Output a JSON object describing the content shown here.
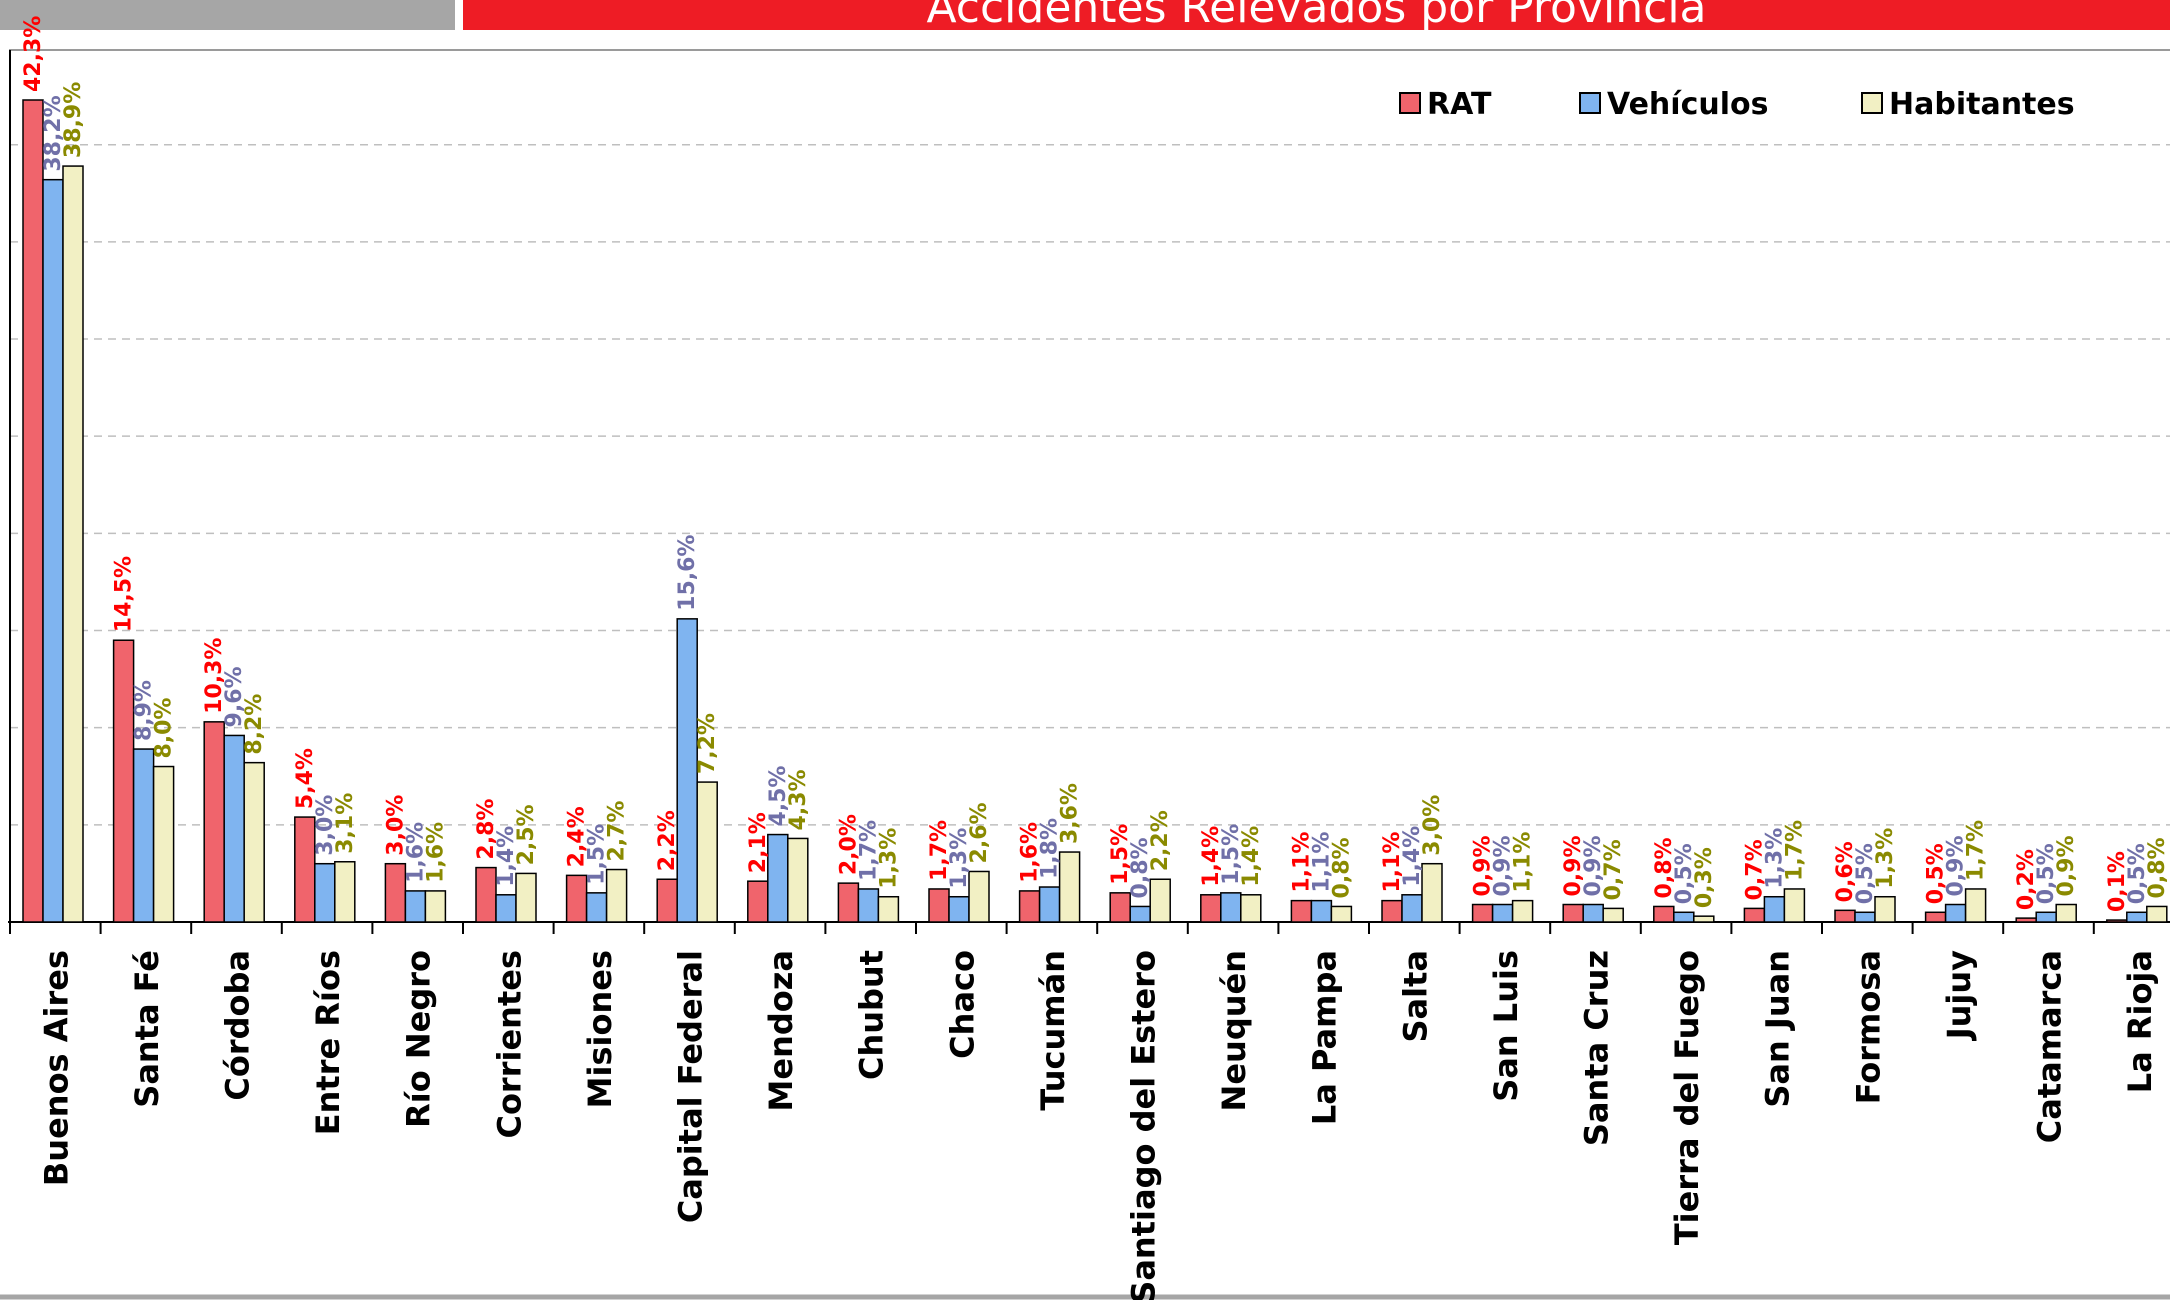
{
  "header": {
    "title": "Accidentes Relevados por Provincia"
  },
  "colors": {
    "banner": "#ee1c25",
    "strip": "#a6a6a6",
    "rat_fill": "#f0646c",
    "vehiculos_fill": "#7fb4f0",
    "habitantes_fill": "#f2f0c4",
    "rat_label": "#ff0000",
    "vehiculos_label": "#7070a8",
    "habitantes_label": "#8a8a00"
  },
  "chart_data": {
    "type": "bar",
    "title": "Accidentes Relevados por Provincia",
    "xlabel": "",
    "ylabel": "",
    "ylim": [
      0,
      45
    ],
    "grid": true,
    "legend_position": "top-right",
    "categories": [
      "Buenos Aires",
      "Santa Fé",
      "Córdoba",
      "Entre Ríos",
      "Río Negro",
      "Corrientes",
      "Misiones",
      "Capital Federal",
      "Mendoza",
      "Chubut",
      "Chaco",
      "Tucumán",
      "Santiago del Estero",
      "Neuquén",
      "La Pampa",
      "Salta",
      "San Luis",
      "Santa Cruz",
      "Tierra del Fuego",
      "San Juan",
      "Formosa",
      "Jujuy",
      "Catamarca",
      "La Rioja"
    ],
    "series": [
      {
        "name": "RAT",
        "values": [
          42.3,
          14.5,
          10.3,
          5.4,
          3.0,
          2.8,
          2.4,
          2.2,
          2.1,
          2.0,
          1.7,
          1.6,
          1.5,
          1.4,
          1.1,
          1.1,
          0.9,
          0.9,
          0.8,
          0.7,
          0.6,
          0.5,
          0.2,
          0.1
        ],
        "labels": [
          "42,3%",
          "14,5%",
          "10,3%",
          "5,4%",
          "3,0%",
          "2,8%",
          "2,4%",
          "2,2%",
          "2,1%",
          "2,0%",
          "1,7%",
          "1,6%",
          "1,5%",
          "1,4%",
          "1,1%",
          "1,1%",
          "0,9%",
          "0,9%",
          "0,8%",
          "0,7%",
          "0,6%",
          "0,5%",
          "0,2%",
          "0,1%"
        ]
      },
      {
        "name": "Vehículos",
        "values": [
          38.2,
          8.9,
          9.6,
          3.0,
          1.6,
          1.4,
          1.5,
          15.6,
          4.5,
          1.7,
          1.3,
          1.8,
          0.8,
          1.5,
          1.1,
          1.4,
          0.9,
          0.9,
          0.5,
          1.3,
          0.5,
          0.9,
          0.5,
          0.5
        ],
        "labels": [
          "38,2%",
          "8,9%",
          "9,6%",
          "3,0%",
          "1,6%",
          "1,4%",
          "1,5%",
          "15,6%",
          "4,5%",
          "1,7%",
          "1,3%",
          "1,8%",
          "0,8%",
          "1,5%",
          "1,1%",
          "1,4%",
          "0,9%",
          "0,9%",
          "0,5%",
          "1,3%",
          "0,5%",
          "0,9%",
          "0,5%",
          "0,5%"
        ]
      },
      {
        "name": "Habitantes",
        "values": [
          38.9,
          8.0,
          8.2,
          3.1,
          1.6,
          2.5,
          2.7,
          7.2,
          4.3,
          1.3,
          2.6,
          3.6,
          2.2,
          1.4,
          0.8,
          3.0,
          1.1,
          0.7,
          0.3,
          1.7,
          1.3,
          1.7,
          0.9,
          0.8
        ],
        "labels": [
          "38,9%",
          "8,0%",
          "8,2%",
          "3,1%",
          "1,6%",
          "2,5%",
          "2,7%",
          "7,2%",
          "4,3%",
          "1,3%",
          "2,6%",
          "3,6%",
          "2,2%",
          "1,4%",
          "0,8%",
          "3,0%",
          "1,1%",
          "0,7%",
          "0,3%",
          "1,7%",
          "1,3%",
          "1,7%",
          "0,9%",
          "0,8%"
        ]
      }
    ]
  }
}
